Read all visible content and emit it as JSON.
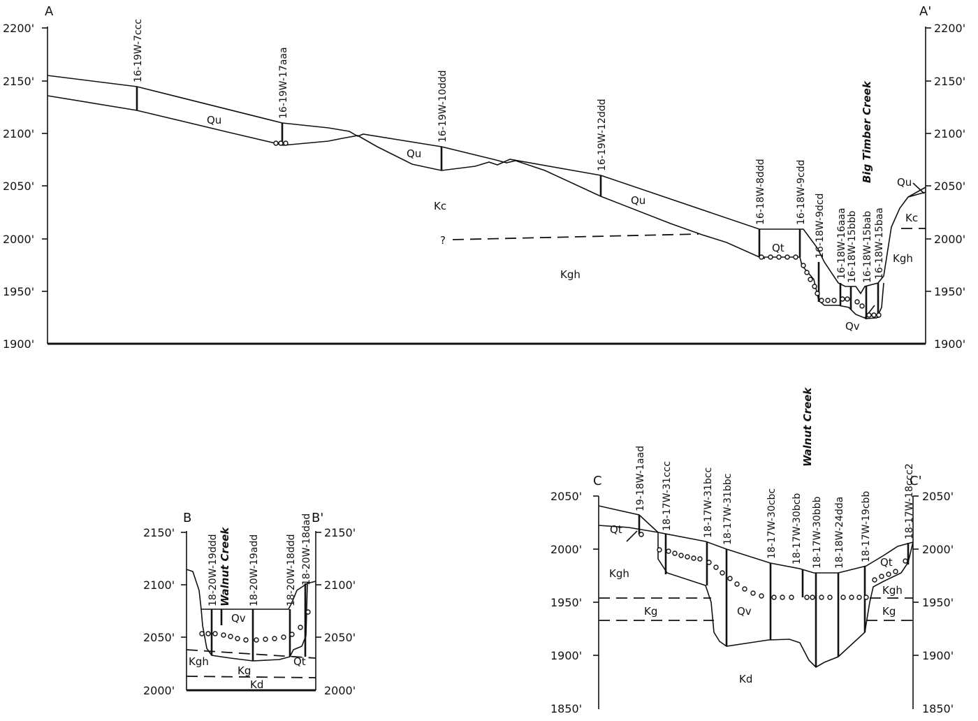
{
  "sections": {
    "A": {
      "label_left": "A",
      "label_right": "A'",
      "elevations": [
        "2200'",
        "2150'",
        "2100'",
        "2050'",
        "2000'",
        "1950'",
        "1900'"
      ],
      "wells": [
        "16-19W-7ccc",
        "16-19W-17aaa",
        "16-19W-10ddd",
        "16-19W-12ddd",
        "16-18W-8ddd",
        "16-18W-9cdd",
        "16-18W-9dcd",
        "16-18W-16aaa",
        "16-18W-15bbb",
        "16-18W-15bab",
        "16-18W-15baa"
      ],
      "creek": "Big Timber Creek",
      "units": {
        "qu1": "Qu",
        "qu2": "Qu",
        "qu3": "Qu",
        "qu4": "Qu",
        "kc1": "Kc",
        "kc2": "Kc",
        "kgh1": "Kgh",
        "kgh2": "Kgh",
        "qt": "Qt",
        "qv": "Qv",
        "query": "?"
      }
    },
    "B": {
      "label_left": "B",
      "label_right": "B'",
      "elevations": [
        "2150'",
        "2100'",
        "2050'",
        "2000'"
      ],
      "wells": [
        "18-20W-19ddd",
        "18-20W-19add",
        "18-20W-18ddd",
        "18-20W-18dad"
      ],
      "creek": "Walnut Creek",
      "units": {
        "qv": "Qv",
        "kgh": "Kgh",
        "kg": "Kg",
        "kd": "Kd",
        "qt": "Qt"
      }
    },
    "C": {
      "label_left": "C",
      "label_right": "C'",
      "elevations": [
        "2050'",
        "2000'",
        "1950'",
        "1900'",
        "1850'"
      ],
      "wells": [
        "19-18W-1aad",
        "18-17W-31ccc",
        "18-17W-31bcc",
        "18-17W-31bbc",
        "18-17W-30cbc",
        "18-17W-30bcb",
        "18-17W-30bbb",
        "18-18W-24dda",
        "18-17W-19cbb",
        "18-17W-18ccc2"
      ],
      "creek": "Walnut Creek",
      "units": {
        "qt1": "Qt",
        "qt2": "Qt",
        "kgh1": "Kgh",
        "kgh2": "Kgh",
        "kg1": "Kg",
        "kg2": "Kg",
        "qv": "Qv",
        "kd": "Kd"
      }
    }
  }
}
